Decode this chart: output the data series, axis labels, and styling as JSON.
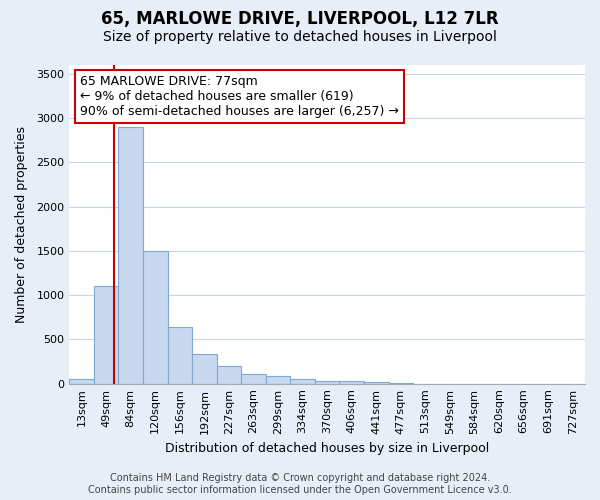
{
  "title_line1": "65, MARLOWE DRIVE, LIVERPOOL, L12 7LR",
  "title_line2": "Size of property relative to detached houses in Liverpool",
  "xlabel": "Distribution of detached houses by size in Liverpool",
  "ylabel": "Number of detached properties",
  "categories": [
    "13sqm",
    "49sqm",
    "84sqm",
    "120sqm",
    "156sqm",
    "192sqm",
    "227sqm",
    "263sqm",
    "299sqm",
    "334sqm",
    "370sqm",
    "406sqm",
    "441sqm",
    "477sqm",
    "513sqm",
    "549sqm",
    "584sqm",
    "620sqm",
    "656sqm",
    "691sqm",
    "727sqm"
  ],
  "values": [
    50,
    1100,
    2900,
    1500,
    640,
    330,
    200,
    105,
    85,
    55,
    35,
    25,
    20,
    10,
    0,
    0,
    0,
    0,
    0,
    0,
    0
  ],
  "bar_color": "#c8d8ee",
  "bar_edge_color": "#7baad4",
  "vline_color": "#cc0000",
  "annotation_text": "65 MARLOWE DRIVE: 77sqm\n← 9% of detached houses are smaller (619)\n90% of semi-detached houses are larger (6,257) →",
  "annotation_box_color": "#ffffff",
  "annotation_box_edge": "#cc0000",
  "ylim": [
    0,
    3600
  ],
  "yticks": [
    0,
    500,
    1000,
    1500,
    2000,
    2500,
    3000,
    3500
  ],
  "grid_color": "#c8d4e8",
  "background_color": "#e8eef8",
  "plot_bg_color": "#ffffff",
  "footer_line1": "Contains HM Land Registry data © Crown copyright and database right 2024.",
  "footer_line2": "Contains public sector information licensed under the Open Government Licence v3.0.",
  "title_fontsize": 12,
  "subtitle_fontsize": 10,
  "axis_label_fontsize": 9,
  "tick_fontsize": 8,
  "annotation_fontsize": 9,
  "footer_fontsize": 7
}
